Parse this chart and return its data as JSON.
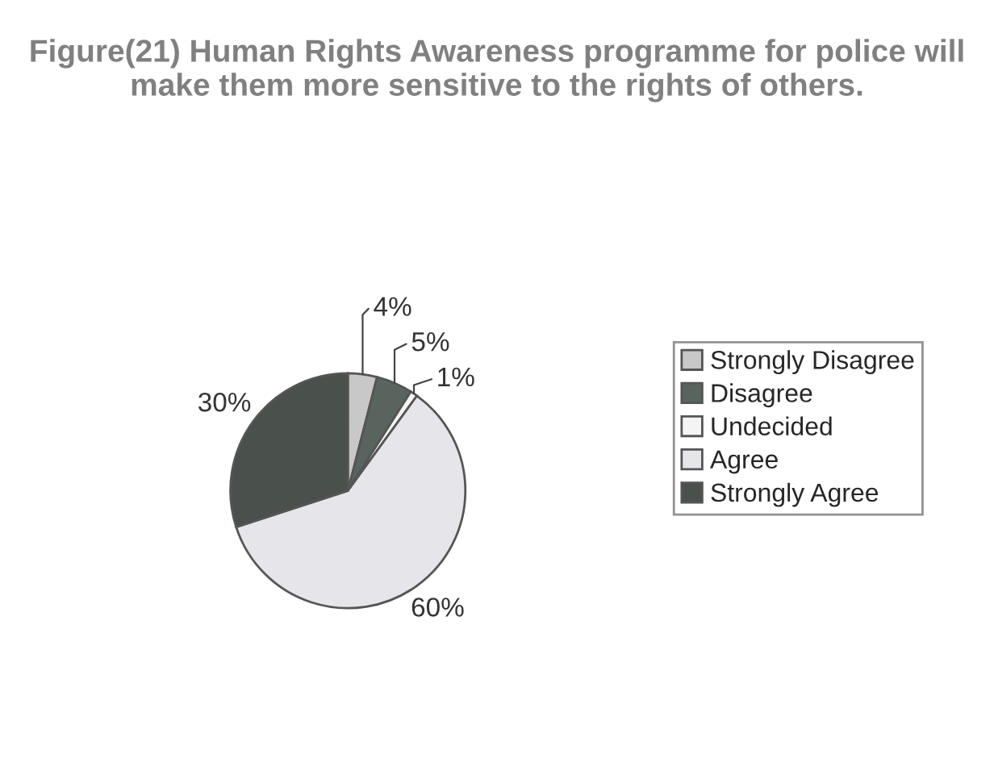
{
  "chart_data": {
    "type": "pie",
    "title": "Figure(21) Human Rights Awareness programme for police will make them more sensitive to the rights of others.",
    "categories": [
      "Strongly Disagree",
      "Disagree",
      "Undecided",
      "Agree",
      "Strongly Agree"
    ],
    "values": [
      4,
      5,
      1,
      60,
      30
    ],
    "value_labels": [
      "4%",
      "5%",
      "1%",
      "60%",
      "30%"
    ],
    "colors": [
      "#c8c8c8",
      "#5a645f",
      "#f4f4f4",
      "#e6e6ea",
      "#4a504c"
    ],
    "legend": "right"
  }
}
